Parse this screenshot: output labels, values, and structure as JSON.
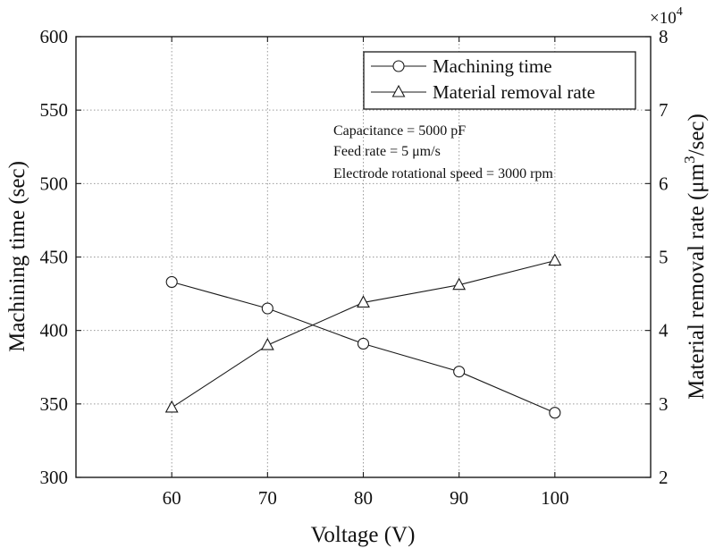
{
  "chart_data": {
    "type": "line",
    "xlabel": "Voltage (V)",
    "ylabel_left": "Machining time (sec)",
    "ylabel_right": "Material removal rate (μm",
    "ylabel_right_sup": "3",
    "ylabel_right_suffix": "/sec)",
    "right_axis_multiplier": "×10",
    "right_axis_multiplier_exp": "4",
    "x": [
      60,
      70,
      80,
      90,
      100
    ],
    "xlim": [
      50,
      110
    ],
    "x_ticks": [
      60,
      70,
      80,
      90,
      100
    ],
    "ylim_left": [
      300,
      600
    ],
    "y_ticks_left": [
      300,
      350,
      400,
      450,
      500,
      550,
      600
    ],
    "ylim_right": [
      2,
      8
    ],
    "y_ticks_right": [
      2,
      3,
      4,
      5,
      6,
      7,
      8
    ],
    "grid": true,
    "series": [
      {
        "name": "Machining time",
        "axis": "left",
        "marker": "circle",
        "values": [
          433,
          415,
          391,
          372,
          344
        ]
      },
      {
        "name": "Material removal rate",
        "axis": "right",
        "marker": "triangle",
        "values": [
          2.95,
          3.8,
          4.38,
          4.62,
          4.95
        ]
      }
    ],
    "legend_position": "top-right",
    "annotations": [
      "Capacitance = 5000 pF",
      "Feed rate = 5 μm/s",
      "Electrode rotational speed = 3000 rpm"
    ]
  }
}
